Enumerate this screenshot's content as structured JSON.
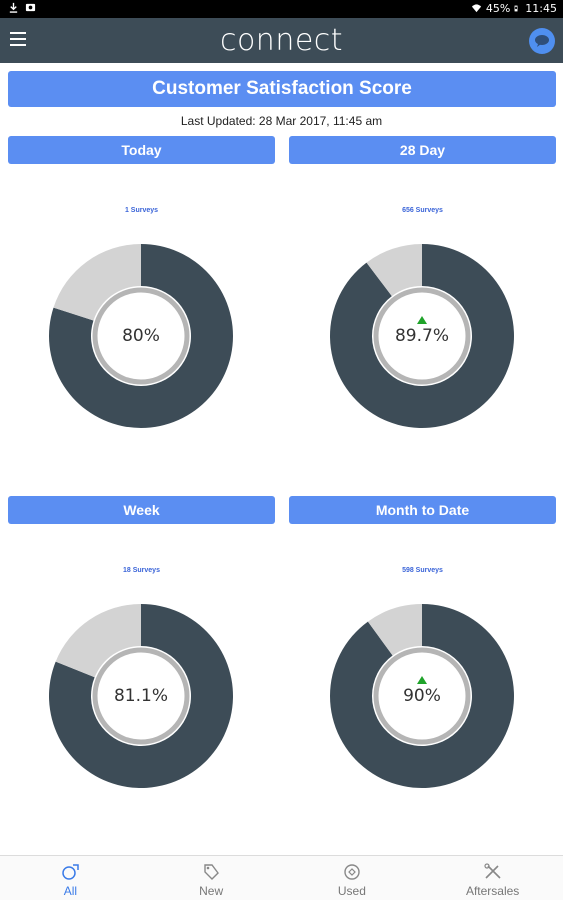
{
  "status_bar": {
    "battery": "45%",
    "time": "11:45"
  },
  "app": {
    "title": "connect"
  },
  "banner": {
    "title": "Customer Satisfaction Score"
  },
  "last_updated": "Last Updated: 28 Mar 2017, 11:45 am",
  "panels": [
    {
      "period": "Today",
      "surveys": "1 Surveys",
      "score_text": "80%",
      "score": 80,
      "trend": "none"
    },
    {
      "period": "28 Day",
      "surveys": "656 Surveys",
      "score_text": "89.7%",
      "score": 89.7,
      "trend": "up"
    },
    {
      "period": "Week",
      "surveys": "18 Surveys",
      "score_text": "81.1%",
      "score": 81.1,
      "trend": "none"
    },
    {
      "period": "Month to Date",
      "surveys": "598 Surveys",
      "score_text": "90%",
      "score": 90,
      "trend": "up"
    }
  ],
  "colors": {
    "score": "#3d4c57",
    "remainder": "#d3d3d3",
    "accent": "#5b8ef2",
    "trend_up": "#1fa32a"
  },
  "nav": {
    "items": [
      {
        "label": "All",
        "icon": "all-icon",
        "active": true
      },
      {
        "label": "New",
        "icon": "tag-icon",
        "active": false
      },
      {
        "label": "Used",
        "icon": "used-tag-icon",
        "active": false
      },
      {
        "label": "Aftersales",
        "icon": "tools-icon",
        "active": false
      }
    ]
  }
}
